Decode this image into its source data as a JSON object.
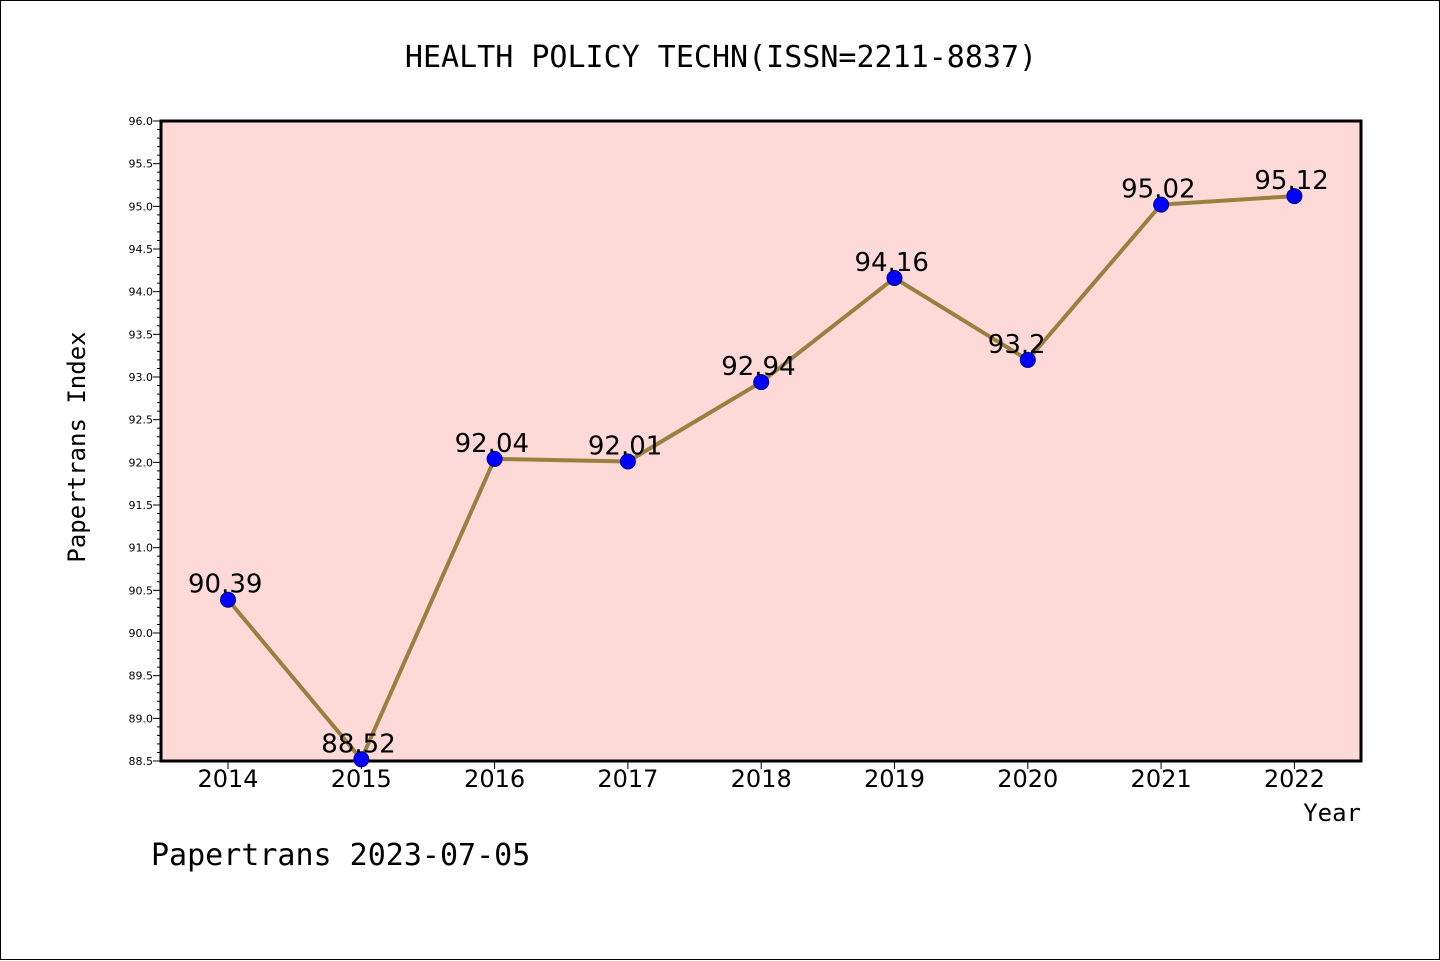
{
  "chart_data": {
    "type": "line",
    "title": "HEALTH POLICY TECHN(ISSN=2211-8837)",
    "xlabel": "Year",
    "ylabel": "Papertrans Index",
    "categories": [
      "2014",
      "2015",
      "2016",
      "2017",
      "2018",
      "2019",
      "2020",
      "2021",
      "2022"
    ],
    "series": [
      {
        "values": [
          90.39,
          88.52,
          92.04,
          92.01,
          92.94,
          94.16,
          93.2,
          95.02,
          95.12
        ],
        "labels": [
          "90.39",
          "88.52",
          "92.04",
          "92.01",
          "92.94",
          "94.16",
          "93.2",
          "95.02",
          "95.12"
        ]
      }
    ],
    "ylim": [
      88.5,
      96.0
    ],
    "yticks": [
      "88.5",
      "89.0",
      "89.5",
      "90.0",
      "90.5",
      "91.0",
      "91.5",
      "92.0",
      "92.5",
      "93.0",
      "93.5",
      "94.0",
      "94.5",
      "95.0",
      "95.5",
      "96.0"
    ],
    "grid": false,
    "colors": {
      "plot_background": "#fddad8",
      "line": "#9a8040",
      "marker": "#0000ff",
      "marker_edge": "#00008b"
    }
  },
  "footer": "Papertrans 2023-07-05"
}
